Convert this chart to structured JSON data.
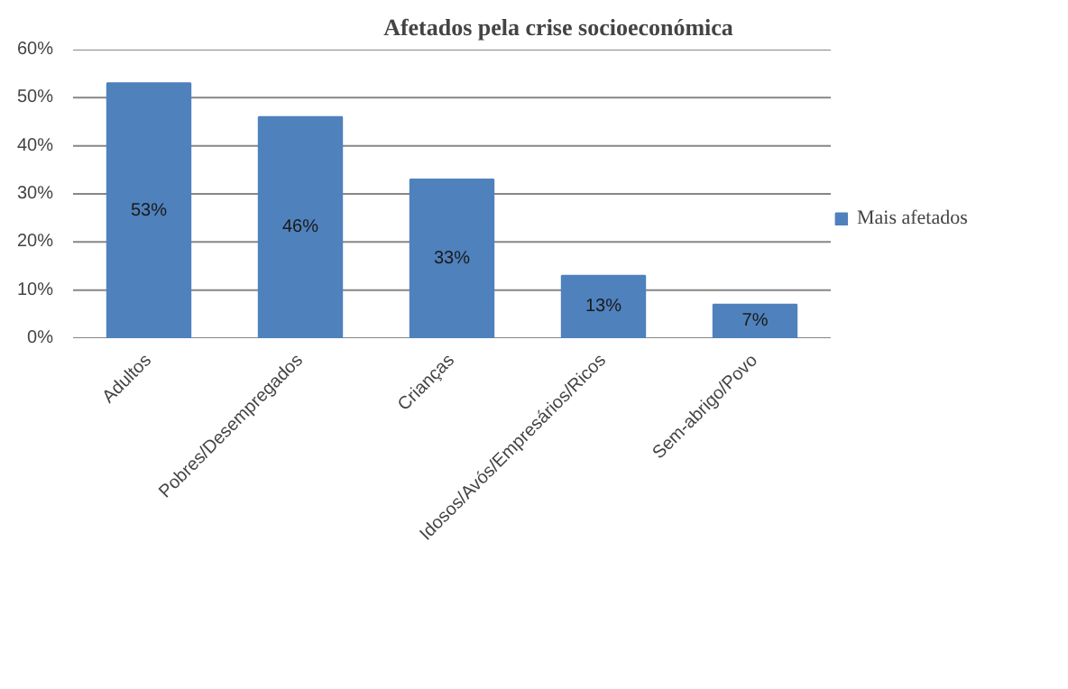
{
  "chart_data": {
    "type": "bar",
    "title": "Afetados pela crise socioeconómica",
    "categories": [
      "Adultos",
      "Pobres/Desempregados",
      "Crianças",
      "Idosos/Avós/Empresários/Ricos",
      "Sem-abrigo/Povo"
    ],
    "series": [
      {
        "name": "Mais afetados",
        "color": "#4f81bd",
        "values": [
          53,
          46,
          33,
          13,
          7
        ],
        "value_labels": [
          "53%",
          "46%",
          "33%",
          "13%",
          "7%"
        ]
      }
    ],
    "ylim": [
      0,
      60
    ],
    "yticks": [
      {
        "value": 0,
        "label": "0%"
      },
      {
        "value": 10,
        "label": "10%"
      },
      {
        "value": 20,
        "label": "20%"
      },
      {
        "value": 30,
        "label": "30%"
      },
      {
        "value": 40,
        "label": "40%"
      },
      {
        "value": 50,
        "label": "50%"
      },
      {
        "value": 60,
        "label": "60%"
      }
    ],
    "grid": "y",
    "legend": "right"
  }
}
